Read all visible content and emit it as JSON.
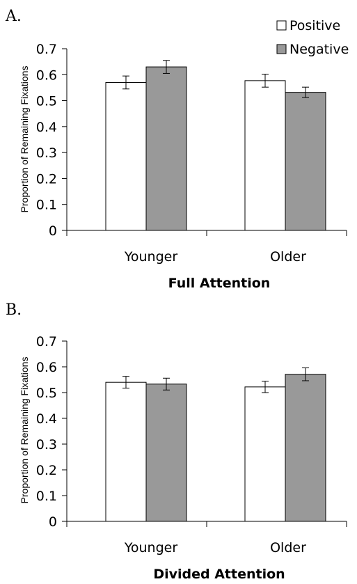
{
  "chart_data": [
    {
      "type": "bar",
      "panel_label": "A.",
      "categories": [
        "Younger",
        "Older"
      ],
      "series": [
        {
          "name": "Positive",
          "color": "#ffffff",
          "values": [
            0.57,
            0.577
          ],
          "errors": [
            0.025,
            0.025
          ]
        },
        {
          "name": "Negative",
          "color": "#999999",
          "values": [
            0.63,
            0.532
          ],
          "errors": [
            0.025,
            0.02
          ]
        }
      ],
      "yticks": [
        "0",
        "0.1",
        "0.2",
        "0.3",
        "0.4",
        "0.5",
        "0.6",
        "0.7"
      ],
      "ylim": [
        0,
        0.7
      ],
      "ylabel": "Proportion of Remaining Fixations",
      "xlabel": "Full Attention",
      "legend": "top-right",
      "grid": false
    },
    {
      "type": "bar",
      "panel_label": "B.",
      "categories": [
        "Younger",
        "Older"
      ],
      "series": [
        {
          "name": "Positive",
          "color": "#ffffff",
          "values": [
            0.54,
            0.522
          ],
          "errors": [
            0.023,
            0.022
          ]
        },
        {
          "name": "Negative",
          "color": "#999999",
          "values": [
            0.533,
            0.571
          ],
          "errors": [
            0.023,
            0.025
          ]
        }
      ],
      "yticks": [
        "0",
        "0.1",
        "0.2",
        "0.3",
        "0.4",
        "0.5",
        "0.6",
        "0.7"
      ],
      "ylim": [
        0,
        0.7
      ],
      "ylabel": "Proportion of Remaining Fixations",
      "xlabel": "Divided Attention",
      "grid": false
    }
  ]
}
